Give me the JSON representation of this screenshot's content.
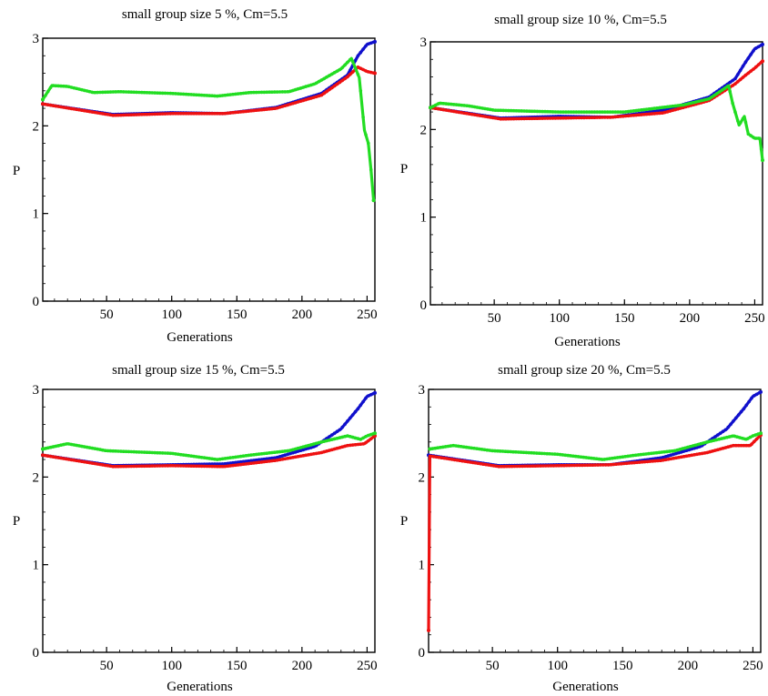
{
  "chart_data": [
    {
      "type": "line",
      "title": "small group size 5 %, Cm=5.5",
      "xlabel": "Generations",
      "ylabel": "P",
      "xlim": [
        1,
        256
      ],
      "ylim": [
        0,
        3
      ],
      "xticks": [
        50,
        100,
        150,
        200,
        250
      ],
      "yticks": [
        0,
        1,
        2,
        3
      ],
      "series": [
        {
          "color": "#1010cc",
          "points": [
            [
              1,
              2.25
            ],
            [
              55,
              2.13
            ],
            [
              100,
              2.15
            ],
            [
              140,
              2.14
            ],
            [
              180,
              2.21
            ],
            [
              215,
              2.37
            ],
            [
              235,
              2.58
            ],
            [
              243,
              2.8
            ],
            [
              250,
              2.93
            ],
            [
              256,
              2.96
            ]
          ]
        },
        {
          "color": "#ee1111",
          "points": [
            [
              1,
              2.25
            ],
            [
              55,
              2.12
            ],
            [
              100,
              2.14
            ],
            [
              140,
              2.14
            ],
            [
              180,
              2.2
            ],
            [
              215,
              2.35
            ],
            [
              235,
              2.56
            ],
            [
              243,
              2.67
            ],
            [
              250,
              2.62
            ],
            [
              256,
              2.6
            ]
          ]
        },
        {
          "color": "#22dd22",
          "points": [
            [
              1,
              2.3
            ],
            [
              8,
              2.46
            ],
            [
              20,
              2.45
            ],
            [
              40,
              2.38
            ],
            [
              60,
              2.39
            ],
            [
              100,
              2.37
            ],
            [
              135,
              2.34
            ],
            [
              160,
              2.38
            ],
            [
              190,
              2.39
            ],
            [
              210,
              2.48
            ],
            [
              230,
              2.65
            ],
            [
              238,
              2.77
            ],
            [
              244,
              2.55
            ],
            [
              248,
              1.95
            ],
            [
              251,
              1.8
            ],
            [
              253,
              1.5
            ],
            [
              255,
              1.15
            ]
          ]
        }
      ]
    },
    {
      "type": "line",
      "title": "small group size 10 %, Cm=5.5",
      "xlabel": "Generations",
      "ylabel": "P",
      "xlim": [
        1,
        256
      ],
      "ylim": [
        0,
        3
      ],
      "xticks": [
        50,
        100,
        150,
        200,
        250
      ],
      "yticks": [
        0,
        1,
        2,
        3
      ],
      "series": [
        {
          "color": "#1010cc",
          "points": [
            [
              1,
              2.25
            ],
            [
              55,
              2.13
            ],
            [
              100,
              2.15
            ],
            [
              140,
              2.14
            ],
            [
              180,
              2.22
            ],
            [
              215,
              2.37
            ],
            [
              235,
              2.58
            ],
            [
              243,
              2.77
            ],
            [
              250,
              2.92
            ],
            [
              256,
              2.97
            ]
          ]
        },
        {
          "color": "#ee1111",
          "points": [
            [
              1,
              2.25
            ],
            [
              55,
              2.12
            ],
            [
              100,
              2.13
            ],
            [
              140,
              2.14
            ],
            [
              180,
              2.19
            ],
            [
              215,
              2.33
            ],
            [
              235,
              2.52
            ],
            [
              243,
              2.62
            ],
            [
              250,
              2.7
            ],
            [
              256,
              2.78
            ]
          ]
        },
        {
          "color": "#22dd22",
          "points": [
            [
              1,
              2.25
            ],
            [
              8,
              2.3
            ],
            [
              30,
              2.27
            ],
            [
              50,
              2.22
            ],
            [
              100,
              2.2
            ],
            [
              150,
              2.2
            ],
            [
              195,
              2.28
            ],
            [
              215,
              2.35
            ],
            [
              230,
              2.5
            ],
            [
              233,
              2.3
            ],
            [
              238,
              2.05
            ],
            [
              242,
              2.15
            ],
            [
              245,
              1.95
            ],
            [
              250,
              1.9
            ],
            [
              254,
              1.9
            ],
            [
              256,
              1.65
            ]
          ]
        }
      ]
    },
    {
      "type": "line",
      "title": "small group size 15 %, Cm=5.5",
      "xlabel": "Generations",
      "ylabel": "P",
      "xlim": [
        1,
        256
      ],
      "ylim": [
        0,
        3
      ],
      "xticks": [
        50,
        100,
        150,
        200,
        250
      ],
      "yticks": [
        0,
        1,
        2,
        3
      ],
      "series": [
        {
          "color": "#1010cc",
          "points": [
            [
              1,
              2.25
            ],
            [
              55,
              2.13
            ],
            [
              100,
              2.14
            ],
            [
              140,
              2.15
            ],
            [
              180,
              2.22
            ],
            [
              210,
              2.35
            ],
            [
              230,
              2.55
            ],
            [
              243,
              2.78
            ],
            [
              250,
              2.92
            ],
            [
              256,
              2.96
            ]
          ]
        },
        {
          "color": "#ee1111",
          "points": [
            [
              1,
              2.25
            ],
            [
              55,
              2.12
            ],
            [
              100,
              2.13
            ],
            [
              140,
              2.12
            ],
            [
              180,
              2.19
            ],
            [
              215,
              2.28
            ],
            [
              235,
              2.36
            ],
            [
              248,
              2.38
            ],
            [
              256,
              2.47
            ]
          ]
        },
        {
          "color": "#22dd22",
          "points": [
            [
              1,
              2.32
            ],
            [
              20,
              2.38
            ],
            [
              50,
              2.3
            ],
            [
              100,
              2.27
            ],
            [
              135,
              2.2
            ],
            [
              160,
              2.25
            ],
            [
              190,
              2.3
            ],
            [
              215,
              2.4
            ],
            [
              235,
              2.47
            ],
            [
              245,
              2.43
            ],
            [
              250,
              2.47
            ],
            [
              256,
              2.5
            ]
          ]
        }
      ]
    },
    {
      "type": "line",
      "title": "small group size 20 %, Cm=5.5",
      "xlabel": "Generations",
      "ylabel": "P",
      "xlim": [
        1,
        256
      ],
      "ylim": [
        0,
        3
      ],
      "xticks": [
        50,
        100,
        150,
        200,
        250
      ],
      "yticks": [
        0,
        1,
        2,
        3
      ],
      "series": [
        {
          "color": "#1010cc",
          "points": [
            [
              1,
              2.25
            ],
            [
              55,
              2.13
            ],
            [
              100,
              2.14
            ],
            [
              140,
              2.14
            ],
            [
              180,
              2.22
            ],
            [
              210,
              2.35
            ],
            [
              230,
              2.55
            ],
            [
              243,
              2.78
            ],
            [
              250,
              2.92
            ],
            [
              256,
              2.97
            ]
          ]
        },
        {
          "color": "#ee1111",
          "points": [
            [
              1,
              0.25
            ],
            [
              2,
              2.24
            ],
            [
              55,
              2.12
            ],
            [
              100,
              2.13
            ],
            [
              140,
              2.14
            ],
            [
              180,
              2.19
            ],
            [
              215,
              2.28
            ],
            [
              235,
              2.36
            ],
            [
              248,
              2.36
            ],
            [
              256,
              2.48
            ]
          ]
        },
        {
          "color": "#22dd22",
          "points": [
            [
              2,
              2.32
            ],
            [
              20,
              2.36
            ],
            [
              50,
              2.3
            ],
            [
              100,
              2.26
            ],
            [
              135,
              2.2
            ],
            [
              160,
              2.25
            ],
            [
              190,
              2.3
            ],
            [
              215,
              2.4
            ],
            [
              235,
              2.47
            ],
            [
              245,
              2.43
            ],
            [
              250,
              2.47
            ],
            [
              256,
              2.5
            ]
          ]
        }
      ]
    }
  ]
}
